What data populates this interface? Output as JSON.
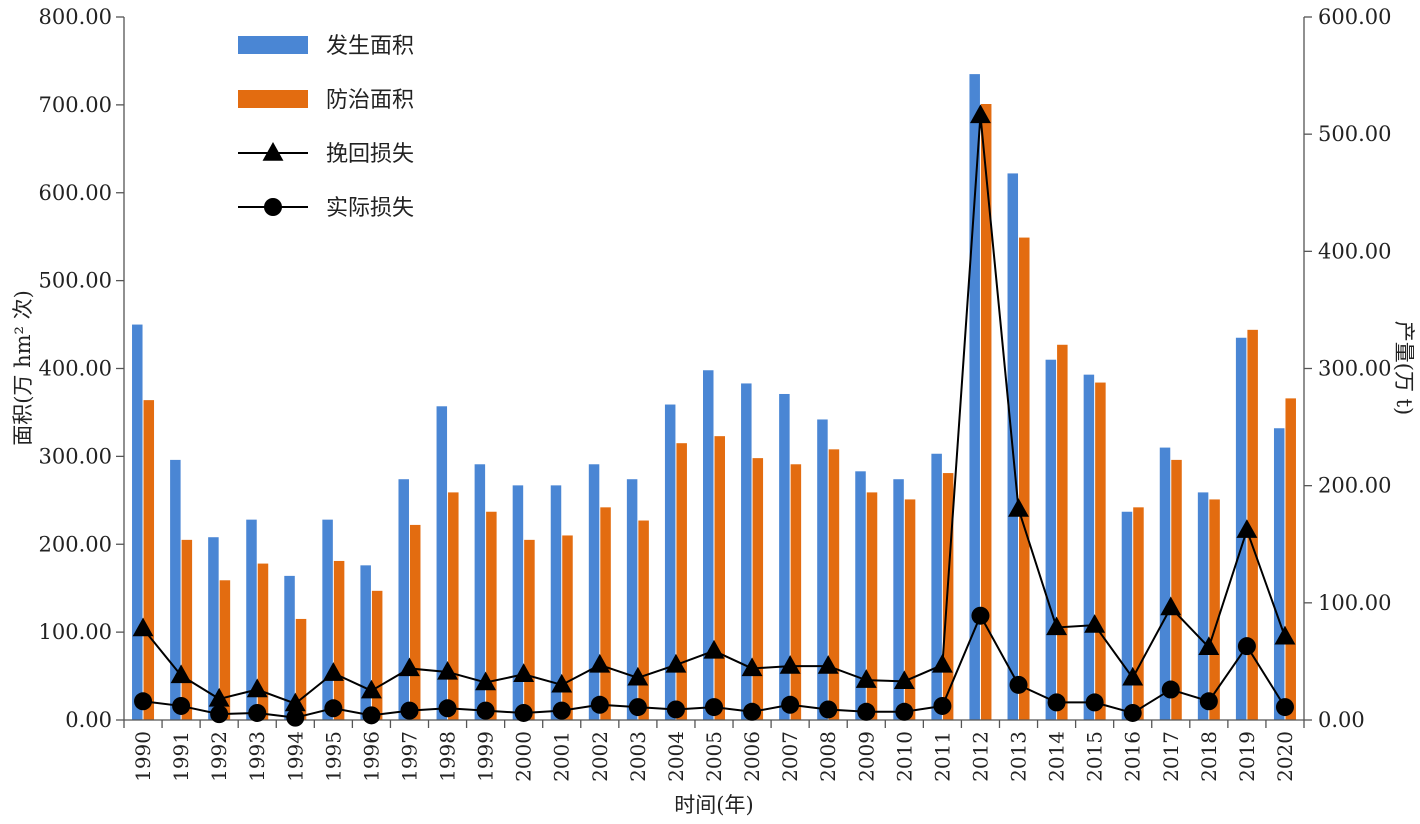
{
  "chart_data": {
    "type": "bar",
    "categories": [
      "1990",
      "1991",
      "1992",
      "1993",
      "1994",
      "1995",
      "1996",
      "1997",
      "1998",
      "1999",
      "2000",
      "2001",
      "2002",
      "2003",
      "2004",
      "2005",
      "2006",
      "2007",
      "2008",
      "2009",
      "2010",
      "2011",
      "2012",
      "2013",
      "2014",
      "2015",
      "2016",
      "2017",
      "2018",
      "2019",
      "2020"
    ],
    "xlabel": "时间(年)",
    "ylabel": "面积(万 hm² 次)",
    "y2label": "产量(万 t)",
    "ylim": [
      0,
      800
    ],
    "y2lim": [
      0,
      600
    ],
    "yticks": [
      "0.00",
      "100.00",
      "200.00",
      "300.00",
      "400.00",
      "500.00",
      "600.00",
      "700.00",
      "800.00"
    ],
    "y2ticks": [
      "0.00",
      "100.00",
      "200.00",
      "300.00",
      "400.00",
      "500.00",
      "600.00"
    ],
    "legend_position": "top-left",
    "grid": false,
    "series": [
      {
        "name": "发生面积",
        "type": "bar",
        "axis": "left",
        "color": "#4a86d4",
        "values": [
          450,
          296,
          208,
          228,
          164,
          228,
          176,
          274,
          357,
          291,
          267,
          267,
          291,
          274,
          359,
          398,
          383,
          371,
          342,
          283,
          274,
          303,
          735,
          622,
          410,
          393,
          237,
          310,
          259,
          435,
          332
        ]
      },
      {
        "name": "防治面积",
        "type": "bar",
        "axis": "left",
        "color": "#e36c10",
        "values": [
          364,
          205,
          159,
          178,
          115,
          181,
          147,
          222,
          259,
          237,
          205,
          210,
          242,
          227,
          315,
          323,
          298,
          291,
          308,
          259,
          251,
          281,
          701,
          549,
          427,
          384,
          242,
          296,
          251,
          444,
          366
        ]
      },
      {
        "name": "挽回损失",
        "type": "line",
        "marker": "triangle",
        "axis": "right",
        "color": "#000000",
        "values": [
          78,
          38,
          18,
          26,
          14,
          40,
          25,
          44,
          41,
          32,
          39,
          30,
          47,
          36,
          47,
          59,
          44,
          46,
          46,
          34,
          33,
          47,
          516,
          180,
          79,
          81,
          36,
          96,
          62,
          162,
          71
        ]
      },
      {
        "name": "实际损失",
        "type": "line",
        "marker": "circle",
        "axis": "right",
        "color": "#000000",
        "values": [
          16,
          12,
          5,
          6,
          2,
          10,
          4,
          8,
          10,
          8,
          6,
          8,
          13,
          11,
          9,
          11,
          7,
          13,
          9,
          7,
          7,
          12,
          89,
          30,
          15,
          15,
          6,
          26,
          16,
          63,
          11
        ]
      }
    ]
  }
}
